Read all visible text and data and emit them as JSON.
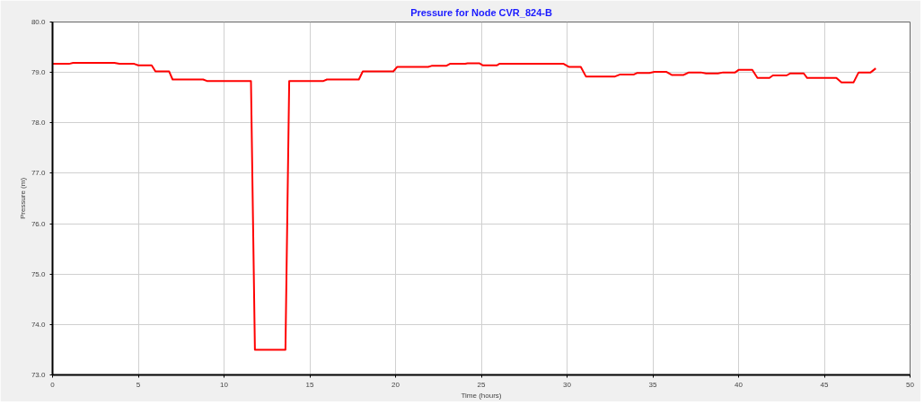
{
  "chart_data": {
    "type": "line",
    "title": "Pressure for Node CVR_824-B",
    "xlabel": "Time (hours)",
    "ylabel": "Pressure (m)",
    "x": [
      0,
      0.96,
      1.2,
      3.6,
      3.9,
      4.76,
      5.0,
      5.78,
      6.0,
      6.8,
      7.0,
      8.78,
      9.0,
      11.57,
      11.8,
      13.58,
      13.8,
      15.8,
      16.0,
      17.86,
      18.09,
      19.87,
      20.1,
      21.9,
      22.1,
      22.95,
      23.17,
      24.06,
      24.2,
      24.9,
      25.1,
      25.9,
      26.05,
      29.8,
      30.1,
      30.8,
      31.1,
      32.8,
      33.1,
      33.9,
      34.1,
      34.8,
      35.1,
      35.8,
      36.1,
      36.8,
      37.1,
      37.8,
      38.1,
      38.8,
      39.1,
      39.8,
      40.0,
      40.8,
      41.1,
      41.8,
      42.0,
      42.8,
      43.0,
      43.8,
      44.0,
      45.7,
      46.0,
      46.7,
      47.0,
      47.7,
      48.0
    ],
    "series": [
      {
        "color": "#ff0000",
        "values": [
          79.17,
          79.17,
          79.19,
          79.19,
          79.17,
          79.17,
          79.14,
          79.14,
          79.02,
          79.02,
          78.86,
          78.86,
          78.83,
          78.83,
          73.5,
          73.5,
          78.83,
          78.83,
          78.86,
          78.86,
          79.02,
          79.02,
          79.11,
          79.11,
          79.13,
          79.13,
          79.17,
          79.17,
          79.18,
          79.18,
          79.14,
          79.14,
          79.17,
          79.17,
          79.11,
          79.11,
          78.92,
          78.92,
          78.96,
          78.96,
          78.99,
          78.99,
          79.01,
          79.01,
          78.95,
          78.95,
          79.0,
          79.0,
          78.98,
          78.98,
          79.0,
          79.0,
          79.05,
          79.05,
          78.89,
          78.89,
          78.94,
          78.94,
          78.98,
          78.98,
          78.89,
          78.89,
          78.8,
          78.8,
          79.0,
          79.0,
          79.08
        ]
      }
    ],
    "xlim": [
      0,
      50
    ],
    "xticks": [
      0,
      5,
      10,
      15,
      20,
      25,
      30,
      35,
      40,
      45,
      50
    ],
    "ylim": [
      73,
      80
    ],
    "yticks": [
      {
        "value": 73,
        "label": "73.0"
      },
      {
        "value": 74,
        "label": "74.0"
      },
      {
        "value": 75,
        "label": "75.0"
      },
      {
        "value": 76,
        "label": "76.0"
      },
      {
        "value": 77,
        "label": "77.0"
      },
      {
        "value": 78,
        "label": "78.0"
      },
      {
        "value": 79,
        "label": "79.0"
      },
      {
        "value": 80,
        "label": "80.0"
      }
    ],
    "grid": true,
    "marker": "none",
    "line_style": "solid"
  }
}
